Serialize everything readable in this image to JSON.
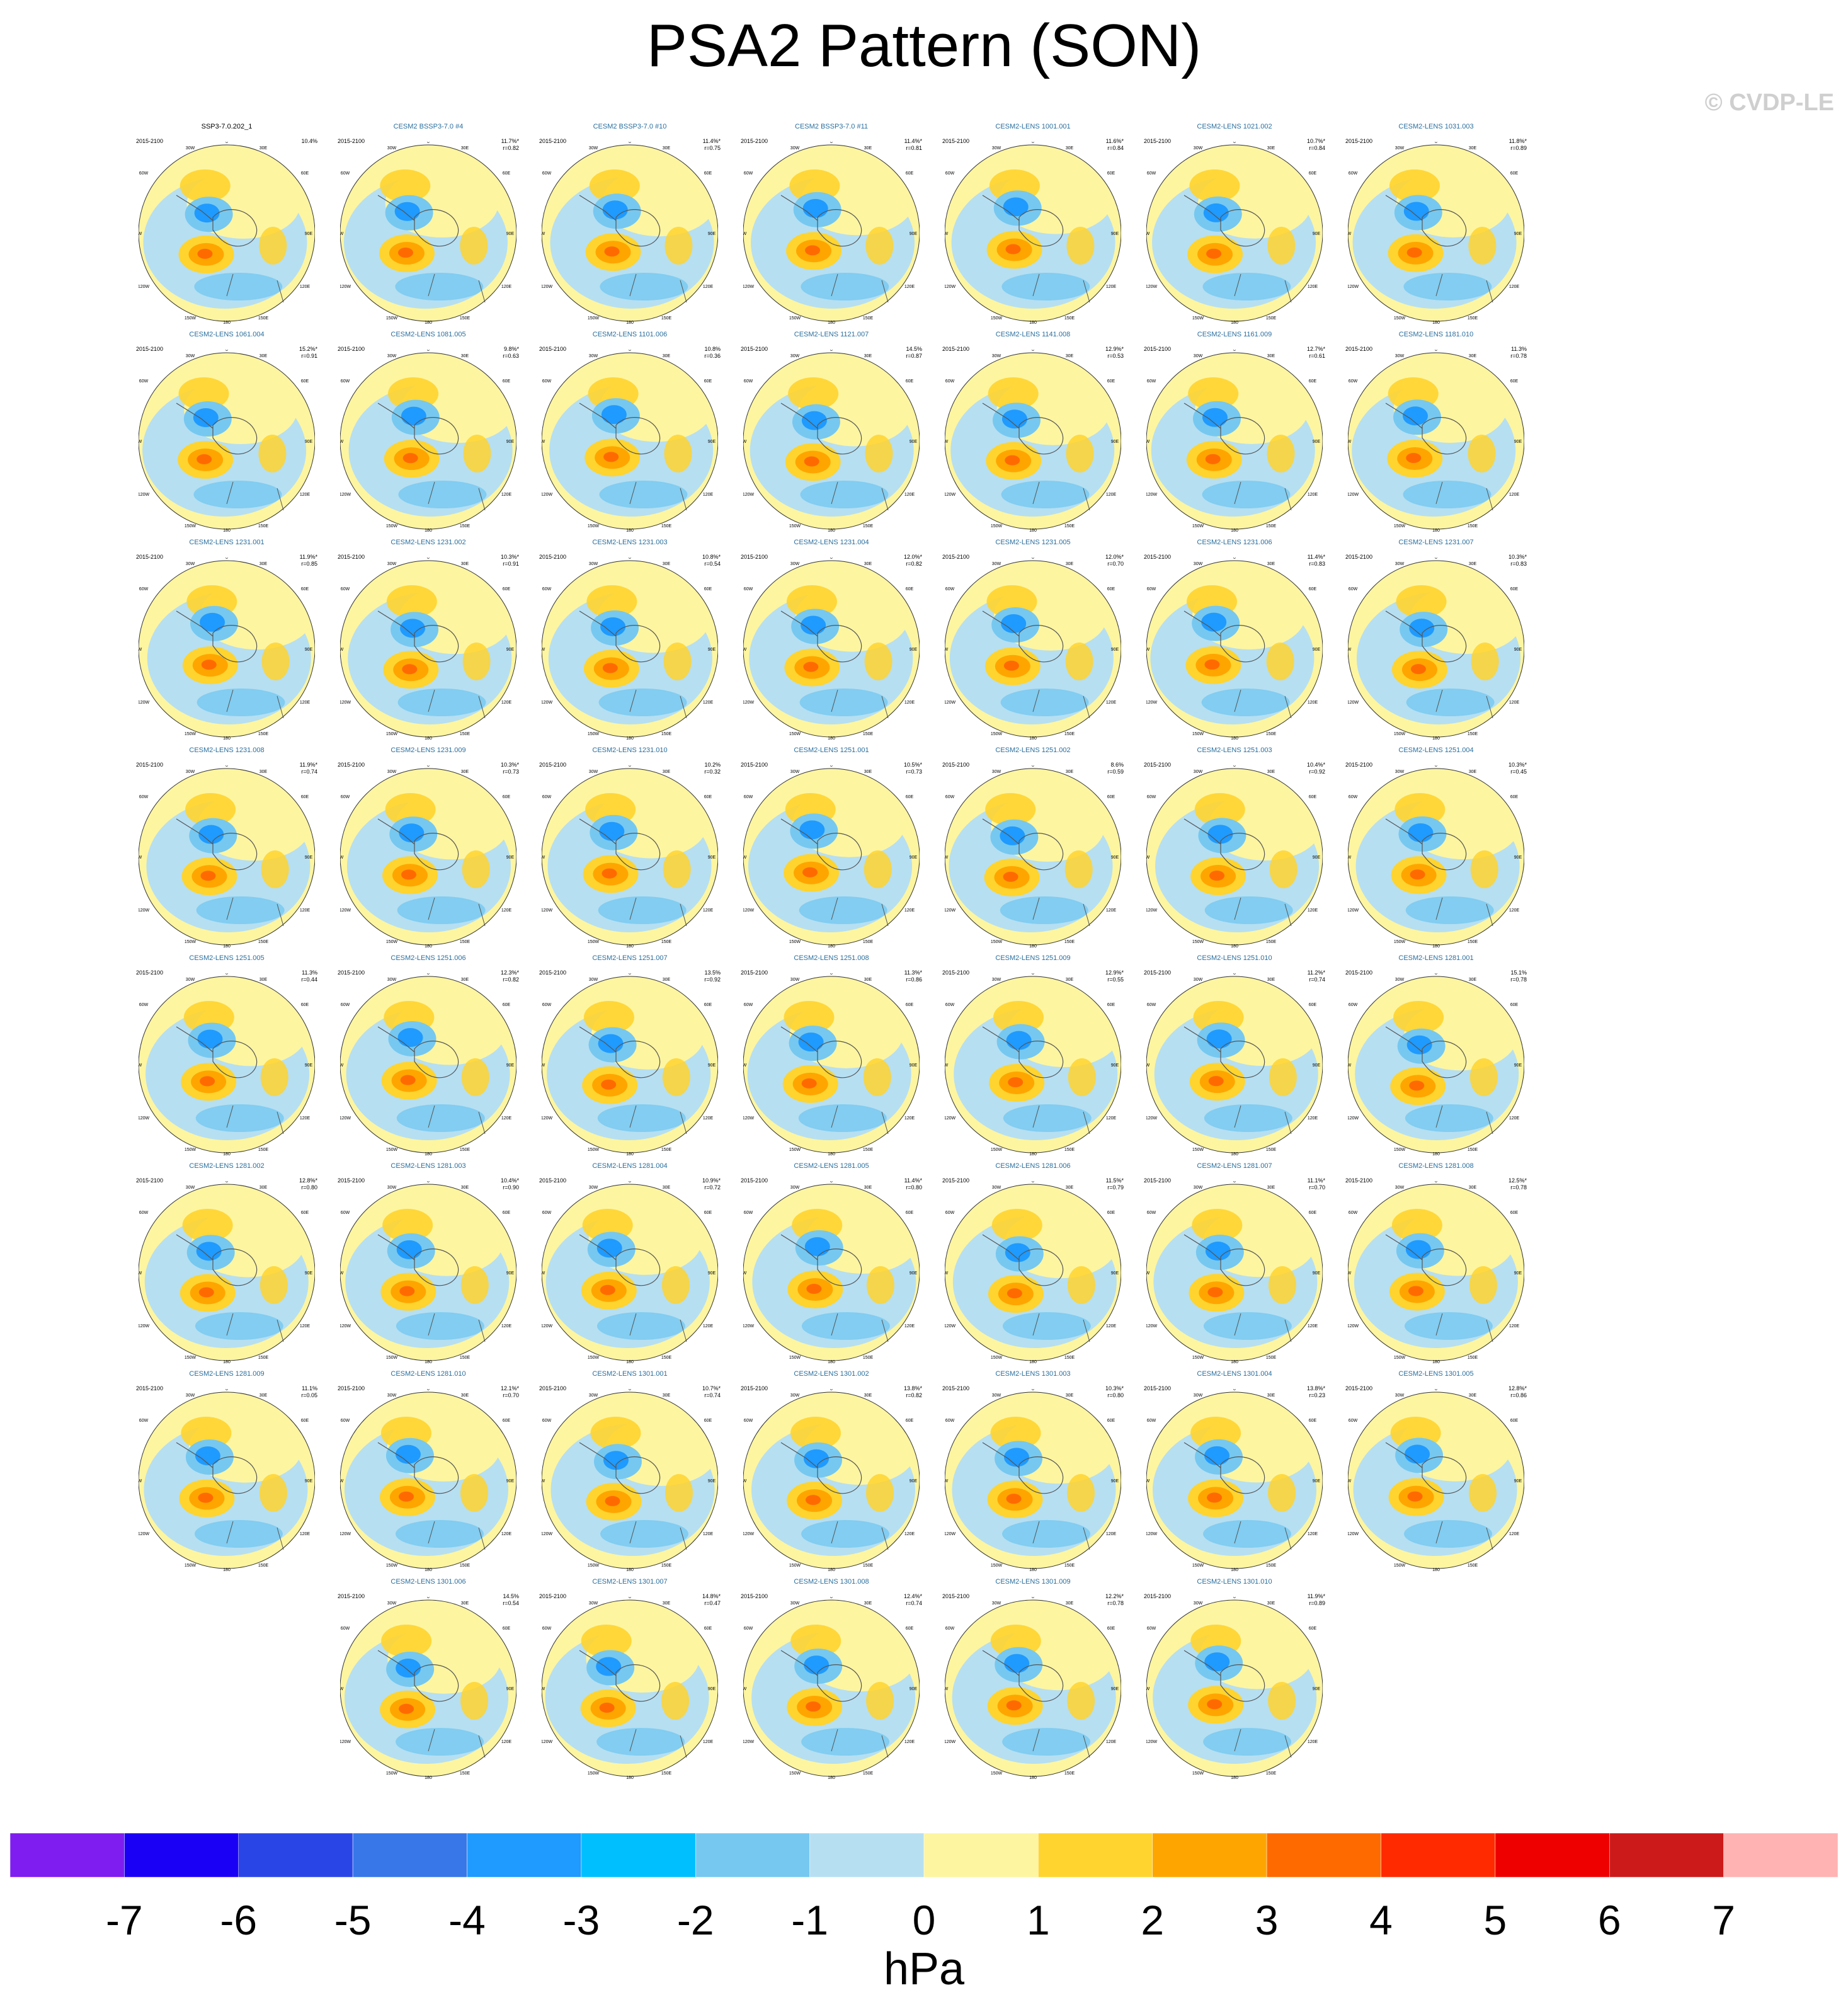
{
  "title": "PSA2 Pattern (SON)",
  "watermark": "© CVDP-LE",
  "period": "2015-2100",
  "map_ticks": {
    "top": "0",
    "top_left": "30W",
    "top_right": "30E",
    "upper_left": "60W",
    "upper_right": "60E",
    "left": "90W",
    "right": "90E",
    "lower_left": "120W",
    "lower_right": "120E",
    "bottom_left": "150W",
    "bottom_right": "150E",
    "bottom": "180"
  },
  "chart_data": {
    "type": "heatmap",
    "description_units": "hPa",
    "colorbar": {
      "unit": "hPa",
      "levels": [
        -7,
        -6,
        -5,
        -4,
        -3,
        -2,
        -1,
        0,
        1,
        2,
        3,
        4,
        5,
        6,
        7
      ],
      "colors": [
        "#7f1df0",
        "#1a00f5",
        "#2a45e6",
        "#3777e8",
        "#1f9aff",
        "#00bfff",
        "#76c8f0",
        "#b6dff2",
        "#fdf5a0",
        "#ffd42e",
        "#ffa500",
        "#ff6a00",
        "#ff2a00",
        "#ee0000",
        "#cc1a1a",
        "#ffb3b3"
      ]
    },
    "panels": [
      {
        "name": "SSP3-7.0.202_1",
        "pct": "10.4%",
        "r": "",
        "first": true
      },
      {
        "name": "CESM2 BSSP3-7.0 #4",
        "pct": "11.7%*",
        "r": "r=0.82"
      },
      {
        "name": "CESM2 BSSP3-7.0 #10",
        "pct": "11.4%*",
        "r": "r=0.75"
      },
      {
        "name": "CESM2 BSSP3-7.0 #11",
        "pct": "11.4%*",
        "r": "r=0.81"
      },
      {
        "name": "CESM2-LENS 1001.001",
        "pct": "11.6%*",
        "r": "r=0.84"
      },
      {
        "name": "CESM2-LENS 1021.002",
        "pct": "10.7%*",
        "r": "r=0.84"
      },
      {
        "name": "CESM2-LENS 1031.003",
        "pct": "11.8%*",
        "r": "r=0.89"
      },
      {
        "name": "CESM2-LENS 1061.004",
        "pct": "15.2%*",
        "r": "r=0.91"
      },
      {
        "name": "CESM2-LENS 1081.005",
        "pct": "9.8%*",
        "r": "r=0.63"
      },
      {
        "name": "CESM2-LENS 1101.006",
        "pct": "10.8%",
        "r": "r=0.36"
      },
      {
        "name": "CESM2-LENS 1121.007",
        "pct": "14.5%",
        "r": "r=0.87"
      },
      {
        "name": "CESM2-LENS 1141.008",
        "pct": "12.9%*",
        "r": "r=0.53"
      },
      {
        "name": "CESM2-LENS 1161.009",
        "pct": "12.7%*",
        "r": "r=0.61"
      },
      {
        "name": "CESM2-LENS 1181.010",
        "pct": "11.3%",
        "r": "r=0.78"
      },
      {
        "name": "CESM2-LENS 1231.001",
        "pct": "11.9%*",
        "r": "r=0.85"
      },
      {
        "name": "CESM2-LENS 1231.002",
        "pct": "10.3%*",
        "r": "r=0.91"
      },
      {
        "name": "CESM2-LENS 1231.003",
        "pct": "10.8%*",
        "r": "r=0.54"
      },
      {
        "name": "CESM2-LENS 1231.004",
        "pct": "12.0%*",
        "r": "r=0.82"
      },
      {
        "name": "CESM2-LENS 1231.005",
        "pct": "12.0%*",
        "r": "r=0.70"
      },
      {
        "name": "CESM2-LENS 1231.006",
        "pct": "11.4%*",
        "r": "r=0.83"
      },
      {
        "name": "CESM2-LENS 1231.007",
        "pct": "10.3%*",
        "r": "r=0.83"
      },
      {
        "name": "CESM2-LENS 1231.008",
        "pct": "11.9%*",
        "r": "r=0.74"
      },
      {
        "name": "CESM2-LENS 1231.009",
        "pct": "10.3%*",
        "r": "r=0.73"
      },
      {
        "name": "CESM2-LENS 1231.010",
        "pct": "10.2%",
        "r": "r=0.32"
      },
      {
        "name": "CESM2-LENS 1251.001",
        "pct": "10.5%*",
        "r": "r=0.73"
      },
      {
        "name": "CESM2-LENS 1251.002",
        "pct": "8.6%",
        "r": "r=0.59"
      },
      {
        "name": "CESM2-LENS 1251.003",
        "pct": "10.4%*",
        "r": "r=0.92"
      },
      {
        "name": "CESM2-LENS 1251.004",
        "pct": "10.3%*",
        "r": "r=0.45"
      },
      {
        "name": "CESM2-LENS 1251.005",
        "pct": "11.3%",
        "r": "r=0.44"
      },
      {
        "name": "CESM2-LENS 1251.006",
        "pct": "12.3%*",
        "r": "r=0.82"
      },
      {
        "name": "CESM2-LENS 1251.007",
        "pct": "13.5%",
        "r": "r=0.92"
      },
      {
        "name": "CESM2-LENS 1251.008",
        "pct": "11.3%*",
        "r": "r=0.86"
      },
      {
        "name": "CESM2-LENS 1251.009",
        "pct": "12.9%*",
        "r": "r=0.55"
      },
      {
        "name": "CESM2-LENS 1251.010",
        "pct": "11.2%*",
        "r": "r=0.74"
      },
      {
        "name": "CESM2-LENS 1281.001",
        "pct": "15.1%",
        "r": "r=0.78"
      },
      {
        "name": "CESM2-LENS 1281.002",
        "pct": "12.8%*",
        "r": "r=0.80"
      },
      {
        "name": "CESM2-LENS 1281.003",
        "pct": "10.4%*",
        "r": "r=0.90"
      },
      {
        "name": "CESM2-LENS 1281.004",
        "pct": "10.9%*",
        "r": "r=0.72"
      },
      {
        "name": "CESM2-LENS 1281.005",
        "pct": "11.4%*",
        "r": "r=0.80"
      },
      {
        "name": "CESM2-LENS 1281.006",
        "pct": "11.5%*",
        "r": "r=0.79"
      },
      {
        "name": "CESM2-LENS 1281.007",
        "pct": "11.1%*",
        "r": "r=0.70"
      },
      {
        "name": "CESM2-LENS 1281.008",
        "pct": "12.5%*",
        "r": "r=0.78"
      },
      {
        "name": "CESM2-LENS 1281.009",
        "pct": "11.1%",
        "r": "r=0.05"
      },
      {
        "name": "CESM2-LENS 1281.010",
        "pct": "12.1%*",
        "r": "r=0.70"
      },
      {
        "name": "CESM2-LENS 1301.001",
        "pct": "10.7%*",
        "r": "r=0.74"
      },
      {
        "name": "CESM2-LENS 1301.002",
        "pct": "13.8%*",
        "r": "r=0.82"
      },
      {
        "name": "CESM2-LENS 1301.003",
        "pct": "10.3%*",
        "r": "r=0.80"
      },
      {
        "name": "CESM2-LENS 1301.004",
        "pct": "13.8%*",
        "r": "r=0.23"
      },
      {
        "name": "CESM2-LENS 1301.005",
        "pct": "12.8%*",
        "r": "r=0.86"
      },
      {
        "name": "CESM2-LENS 1301.006",
        "pct": "14.5%",
        "r": "r=0.54"
      },
      {
        "name": "CESM2-LENS 1301.007",
        "pct": "14.8%*",
        "r": "r=0.47"
      },
      {
        "name": "CESM2-LENS 1301.008",
        "pct": "12.4%*",
        "r": "r=0.74"
      },
      {
        "name": "CESM2-LENS 1301.009",
        "pct": "12.2%*",
        "r": "r=0.78"
      },
      {
        "name": "CESM2-LENS 1301.010",
        "pct": "11.9%*",
        "r": "r=0.89"
      }
    ]
  }
}
